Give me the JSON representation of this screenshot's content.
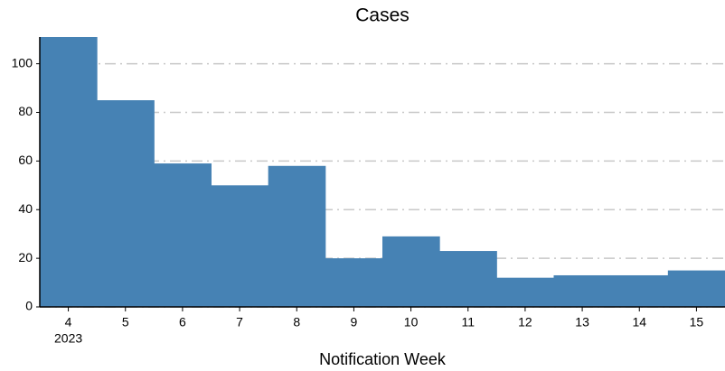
{
  "chart_data": {
    "type": "bar",
    "title": "Cases",
    "x_label": "Notification Week",
    "categories": [
      "4",
      "5",
      "6",
      "7",
      "8",
      "9",
      "10",
      "11",
      "12",
      "13",
      "14",
      "15"
    ],
    "first_category_sublabel": "2023",
    "values": [
      111,
      85,
      59,
      50,
      58,
      20,
      29,
      23,
      12,
      13,
      13,
      15
    ],
    "color": "#4682b4",
    "ylim": [
      0,
      111
    ],
    "yticks": [
      0,
      20,
      40,
      60,
      80,
      100
    ],
    "grid": true
  }
}
